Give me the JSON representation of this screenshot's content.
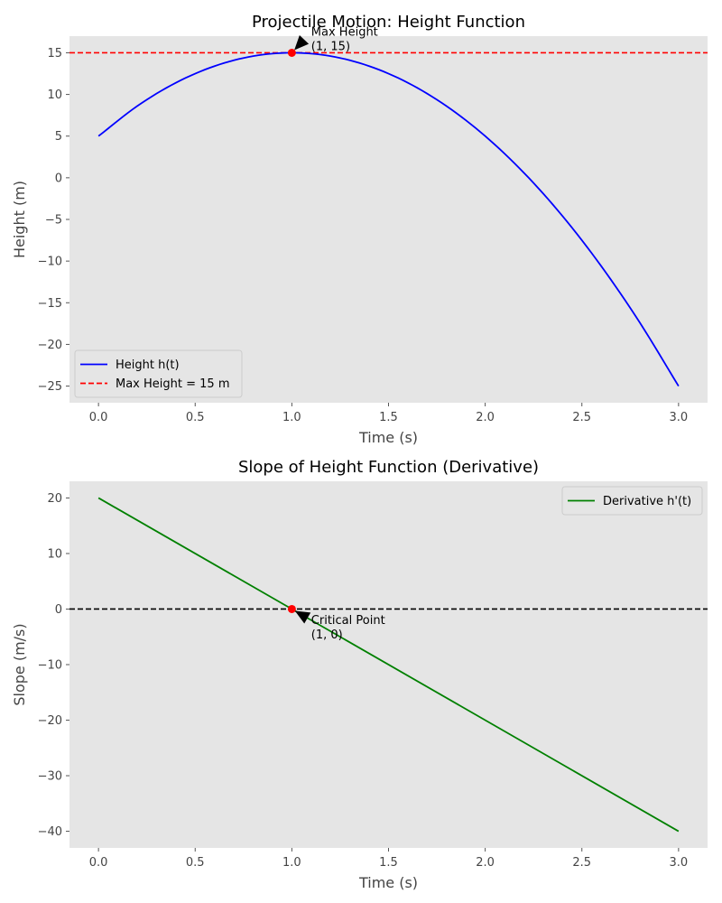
{
  "chart_data": [
    {
      "type": "line",
      "title": "Projectile Motion: Height Function",
      "xlabel": "Time (s)",
      "ylabel": "Height (m)",
      "xlim": [
        -0.15,
        3.15
      ],
      "ylim": [
        -27,
        17
      ],
      "xticks": [
        0,
        0.5,
        1,
        1.5,
        2,
        2.5,
        3
      ],
      "xtick_labels": [
        "0.0",
        "0.5",
        "1.0",
        "1.5",
        "2.0",
        "2.5",
        "3.0"
      ],
      "yticks": [
        15,
        10,
        5,
        0,
        -5,
        -10,
        -15,
        -20,
        -25
      ],
      "ytick_labels": [
        "15",
        "10",
        "5",
        "0",
        "−5",
        "−10",
        "−15",
        "−20",
        "−25"
      ],
      "grid": false,
      "legend_position": "lower-left",
      "background": "#e5e5e5",
      "series": [
        {
          "name": "Height h(t)",
          "color": "#0000ff",
          "style": "solid",
          "x": [
            0,
            0.2,
            0.4,
            0.6,
            0.8,
            1.0,
            1.2,
            1.4,
            1.6,
            1.8,
            2.0,
            2.2,
            2.4,
            2.6,
            2.8,
            3.0
          ],
          "y": [
            5,
            8.6,
            11.4,
            13.4,
            14.6,
            15,
            14.6,
            13.4,
            11.4,
            8.6,
            5,
            0.6,
            -4.6,
            -10.6,
            -17.4,
            -25
          ]
        }
      ],
      "hlines": [
        {
          "name": "Max Height = 15 m",
          "y": 15,
          "color": "#ff0000",
          "style": "dashed"
        }
      ],
      "points": [
        {
          "x": 1,
          "y": 15,
          "color": "#ff0000"
        }
      ],
      "annotations": [
        {
          "lines": [
            "Max Height",
            "(1, 15)"
          ],
          "x": 1,
          "y": 15,
          "text_x": 1.1,
          "text_y": 17.5
        }
      ]
    },
    {
      "type": "line",
      "title": "Slope of Height Function (Derivative)",
      "xlabel": "Time (s)",
      "ylabel": "Slope (m/s)",
      "xlim": [
        -0.15,
        3.15
      ],
      "ylim": [
        -43,
        23
      ],
      "xticks": [
        0,
        0.5,
        1,
        1.5,
        2,
        2.5,
        3
      ],
      "xtick_labels": [
        "0.0",
        "0.5",
        "1.0",
        "1.5",
        "2.0",
        "2.5",
        "3.0"
      ],
      "yticks": [
        20,
        10,
        0,
        -10,
        -20,
        -30,
        -40
      ],
      "ytick_labels": [
        "20",
        "10",
        "0",
        "−10",
        "−20",
        "−30",
        "−40"
      ],
      "grid": false,
      "legend_position": "upper-right",
      "background": "#e5e5e5",
      "series": [
        {
          "name": "Derivative h'(t)",
          "color": "#008000",
          "style": "solid",
          "x": [
            0,
            3
          ],
          "y": [
            20,
            -40
          ]
        }
      ],
      "hlines": [
        {
          "y": 0,
          "color": "#000000",
          "style": "dashed"
        }
      ],
      "points": [
        {
          "x": 1,
          "y": 0,
          "color": "#ff0000"
        }
      ],
      "annotations": [
        {
          "lines": [
            "Critical Point",
            "(1, 0)"
          ],
          "x": 1,
          "y": 0,
          "text_x": 1.1,
          "text_y": -2
        }
      ]
    }
  ]
}
